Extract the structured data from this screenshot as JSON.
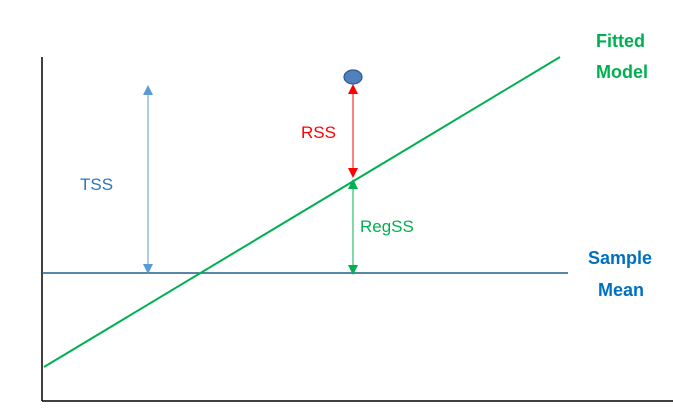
{
  "colors": {
    "axis": "#000000",
    "sample_mean": "#1f5f8b",
    "fitted_model": "#00b050",
    "tss": "#5b9bd5",
    "tss_label": "#2e75b6",
    "rss": "#ff0000",
    "regss": "#00b050",
    "point_fill": "#4f81bd",
    "point_stroke": "#2f5597",
    "sample_mean_label": "#0070c0"
  },
  "labels": {
    "tss": "TSS",
    "rss": "RSS",
    "regss": "RegSS",
    "fitted_model_line1": "Fitted",
    "fitted_model_line2": "Model",
    "sample_mean_line1": "Sample",
    "sample_mean_line2": "Mean"
  }
}
